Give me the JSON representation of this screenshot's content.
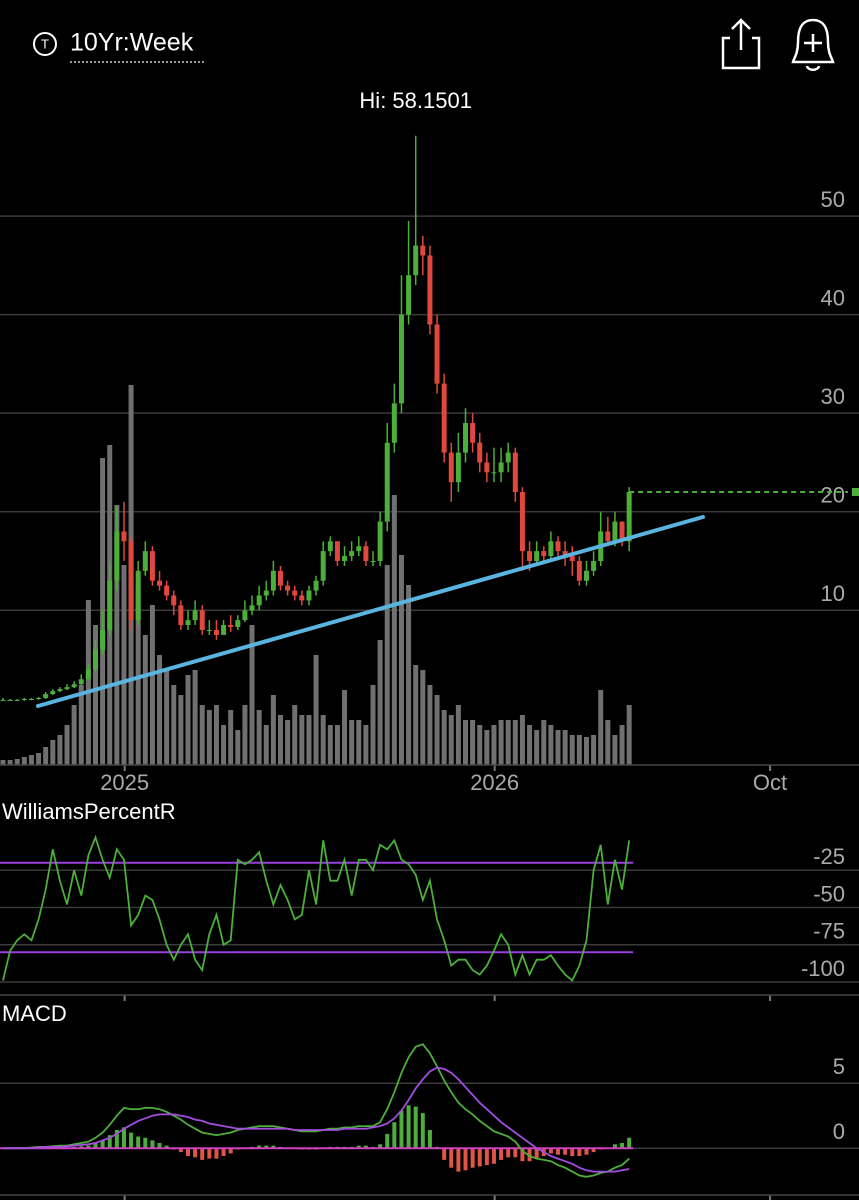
{
  "header": {
    "symbol_icon": "T",
    "title": "10Yr:Week"
  },
  "chart_data": [
    {
      "type": "candlestick",
      "annotation": "Hi: 58.1501",
      "x": [
        0,
        1,
        2,
        3,
        4,
        5,
        6,
        7,
        8,
        9,
        10,
        11,
        12,
        13,
        14,
        15,
        16,
        17,
        18,
        19,
        20,
        21,
        22,
        23,
        24,
        25,
        26,
        27,
        28,
        29,
        30,
        31,
        32,
        33,
        34,
        35,
        36,
        37,
        38,
        39,
        40,
        41,
        42,
        43,
        44,
        45,
        46,
        47,
        48,
        49,
        50,
        51,
        52,
        53,
        54,
        55,
        56,
        57,
        58,
        59,
        60,
        61,
        62,
        63,
        64,
        65,
        66,
        67,
        68,
        69,
        70,
        71,
        72,
        73,
        74,
        75,
        76,
        77,
        78,
        79,
        80,
        81,
        82,
        83,
        84,
        85,
        86,
        87,
        88
      ],
      "open": [
        0.9,
        0.9,
        0.9,
        0.9,
        1.0,
        1.0,
        1.1,
        1.5,
        1.8,
        2.0,
        2.2,
        2.5,
        3.0,
        4.0,
        6.0,
        8.0,
        13,
        18,
        17,
        9,
        14,
        16,
        13,
        12.5,
        11.5,
        10.5,
        8.5,
        9,
        10,
        8,
        8,
        7.5,
        8.5,
        8.3,
        9,
        10,
        10.5,
        11.5,
        12,
        14,
        12.5,
        12,
        11.5,
        11,
        12,
        13,
        16,
        17,
        15,
        15.5,
        16,
        16.5,
        15,
        15,
        19,
        27,
        31,
        40,
        44,
        47,
        46,
        39,
        33,
        26,
        23,
        26,
        29,
        27,
        25,
        24,
        24,
        25,
        26,
        22,
        16,
        15,
        16,
        15.5,
        17,
        16,
        15.5,
        15,
        13,
        14,
        15,
        18,
        17,
        19,
        17
      ],
      "high": [
        1.1,
        1.0,
        1.0,
        1.1,
        1.1,
        1.2,
        1.7,
        2.0,
        2.2,
        2.5,
        2.8,
        3.5,
        4.5,
        7,
        10,
        15,
        20.5,
        21,
        17.5,
        15,
        17,
        16.5,
        14,
        13,
        12,
        11,
        10,
        11,
        10.5,
        9,
        9,
        9,
        9.5,
        9.5,
        11,
        11.5,
        12.5,
        13,
        15,
        14.5,
        13,
        12.5,
        12,
        12.5,
        13.5,
        17,
        17.5,
        17,
        16.5,
        17,
        17.5,
        17,
        16,
        20,
        29,
        33,
        44,
        49.5,
        58.15,
        48,
        47,
        40,
        34,
        27,
        28,
        30.5,
        30,
        28,
        26,
        26.5,
        26.5,
        27,
        26.5,
        22.5,
        17,
        17,
        16.5,
        18,
        17.5,
        17,
        16.5,
        15.5,
        15,
        16,
        20,
        19.5,
        20,
        19,
        22.5
      ],
      "low": [
        0.8,
        0.8,
        0.8,
        0.8,
        0.9,
        0.9,
        1.0,
        1.4,
        1.7,
        1.9,
        2.1,
        2.4,
        2.9,
        3.8,
        5.5,
        7.5,
        12,
        15,
        8,
        8.5,
        13.5,
        12.5,
        12,
        11,
        9.5,
        8,
        8,
        8.5,
        7.5,
        7.5,
        7,
        7.5,
        7.8,
        8,
        8.8,
        9.5,
        10,
        11,
        11.5,
        12,
        11.5,
        11,
        10.5,
        10.5,
        11.5,
        12.5,
        15.5,
        14.5,
        14.5,
        15,
        15.5,
        14.5,
        14.5,
        14.5,
        18,
        26,
        30,
        39,
        43,
        44,
        38,
        32,
        25,
        21,
        22,
        25,
        26,
        24,
        23,
        23,
        23,
        24,
        21,
        14,
        14,
        14.5,
        15,
        15,
        15.5,
        14.5,
        13.5,
        12.5,
        12.5,
        13.5,
        14.5,
        16.5,
        16.5,
        16.5,
        16
      ],
      "close": [
        0.9,
        0.9,
        0.9,
        1.0,
        1.0,
        1.1,
        1.5,
        1.8,
        2.0,
        2.2,
        2.5,
        3.0,
        4.0,
        6.0,
        8.0,
        13,
        18,
        17,
        9,
        14,
        16,
        13,
        12.5,
        11.5,
        10.5,
        8.5,
        9,
        10,
        8,
        8,
        7.5,
        8.5,
        8.3,
        9,
        10,
        10.5,
        11.5,
        12,
        14,
        12.5,
        12,
        11.5,
        11,
        12,
        13,
        16,
        17,
        15,
        15.5,
        16,
        16.5,
        15,
        15,
        19,
        27,
        31,
        40,
        44,
        47,
        46,
        39,
        33,
        26,
        23,
        26,
        29,
        27,
        25,
        24,
        24,
        25,
        26,
        22,
        16,
        15,
        16,
        15.5,
        17,
        16,
        15.5,
        15,
        13,
        14,
        15,
        18,
        17,
        19,
        17,
        22
      ],
      "volume": [
        5,
        5,
        6,
        8,
        10,
        12,
        18,
        25,
        30,
        40,
        60,
        80,
        165,
        140,
        307,
        320,
        260,
        200,
        380,
        175,
        130,
        160,
        110,
        95,
        80,
        70,
        90,
        95,
        60,
        55,
        60,
        40,
        55,
        35,
        60,
        140,
        55,
        40,
        70,
        50,
        45,
        60,
        50,
        50,
        110,
        50,
        40,
        40,
        75,
        45,
        45,
        40,
        80,
        125,
        200,
        270,
        210,
        180,
        100,
        95,
        80,
        70,
        55,
        50,
        60,
        45,
        45,
        40,
        35,
        40,
        45,
        45,
        45,
        50,
        40,
        35,
        45,
        40,
        35,
        35,
        30,
        30,
        28,
        30,
        75,
        45,
        30,
        40,
        60
      ],
      "up_color": "#4caf3a",
      "down_color": "#e0483e",
      "volume_color": "#707070",
      "xlim": [
        -0.42,
        120.3
      ],
      "xticks": [
        {
          "value": 17.1,
          "label": "2025"
        },
        {
          "value": 69.1,
          "label": "2026"
        },
        {
          "value": 107.8,
          "label": "Oct"
        }
      ],
      "ylim": [
        -5.7,
        63.3
      ],
      "yticks": [
        10,
        20,
        30,
        40,
        50
      ],
      "vlim": [
        0,
        680
      ],
      "grid": true
    },
    {
      "type": "line",
      "title": "WilliamsPercentR",
      "color": "#4caf3a",
      "values": [
        -99,
        -79,
        -72,
        -68,
        -72,
        -58,
        -38,
        -11,
        -32,
        -48,
        -25,
        -42,
        -15,
        -3,
        -18,
        -30,
        -11,
        -18,
        -62,
        -55,
        -42,
        -45,
        -58,
        -75,
        -85,
        -75,
        -68,
        -85,
        -92,
        -68,
        -55,
        -75,
        -72,
        -18,
        -21,
        -18,
        -13,
        -32,
        -48,
        -35,
        -45,
        -58,
        -55,
        -25,
        -48,
        -5,
        -32,
        -32,
        -18,
        -42,
        -18,
        -18,
        -25,
        -8,
        -11,
        -5,
        -18,
        -21,
        -28,
        -45,
        -32,
        -58,
        -72,
        -89,
        -85,
        -85,
        -92,
        -95,
        -89,
        -79,
        -68,
        -75,
        -95,
        -82,
        -95,
        -85,
        -85,
        -82,
        -89,
        -95,
        -99,
        -89,
        -72,
        -25,
        -8,
        -48,
        -18,
        -38,
        -5
      ],
      "bands": [
        -20,
        -80
      ],
      "band_color": "#9b3fe0",
      "ylim": [
        -108.7,
        22.1
      ],
      "yticks": [
        -25,
        -50,
        -75,
        -100
      ],
      "grid": true
    },
    {
      "type": "macd",
      "title": "MACD",
      "lines": [
        {
          "color": "#4caf3a",
          "values": [
            0,
            0,
            0,
            0,
            0.05,
            0.1,
            0.1,
            0.15,
            0.2,
            0.2,
            0.3,
            0.4,
            0.5,
            0.8,
            1.2,
            1.8,
            2.5,
            3.1,
            3.0,
            3.0,
            3.1,
            3.1,
            3.0,
            2.8,
            2.5,
            2.2,
            1.8,
            1.5,
            1.2,
            1.1,
            1.0,
            1.1,
            1.2,
            1.4,
            1.5,
            1.6,
            1.7,
            1.7,
            1.7,
            1.6,
            1.5,
            1.4,
            1.3,
            1.3,
            1.3,
            1.4,
            1.5,
            1.5,
            1.6,
            1.6,
            1.7,
            1.7,
            1.7,
            2.0,
            3.0,
            4.3,
            5.8,
            7.0,
            7.8,
            8.0,
            7.3,
            6.3,
            5.2,
            4.3,
            3.5,
            3.0,
            2.6,
            2.1,
            1.7,
            1.3,
            1.1,
            0.9,
            0.5,
            -0.2,
            -0.6,
            -0.8,
            -0.9,
            -1.0,
            -1.3,
            -1.5,
            -1.8,
            -2.1,
            -2.2,
            -2.1,
            -1.9,
            -1.8,
            -1.5,
            -1.3,
            -0.8
          ]
        },
        {
          "color": "#a24ee0",
          "values": [
            0,
            0,
            0,
            0,
            0,
            0.05,
            0.1,
            0.1,
            0.1,
            0.15,
            0.2,
            0.25,
            0.3,
            0.4,
            0.6,
            0.8,
            1.1,
            1.5,
            1.8,
            2.1,
            2.3,
            2.5,
            2.6,
            2.6,
            2.6,
            2.5,
            2.4,
            2.2,
            2.1,
            1.9,
            1.8,
            1.7,
            1.6,
            1.5,
            1.5,
            1.5,
            1.5,
            1.5,
            1.5,
            1.5,
            1.5,
            1.4,
            1.4,
            1.4,
            1.4,
            1.4,
            1.4,
            1.4,
            1.5,
            1.5,
            1.5,
            1.5,
            1.6,
            1.7,
            1.9,
            2.3,
            2.9,
            3.7,
            4.6,
            5.3,
            5.9,
            6.2,
            6.1,
            5.8,
            5.3,
            4.7,
            4.1,
            3.5,
            3.0,
            2.5,
            2.0,
            1.6,
            1.2,
            0.8,
            0.4,
            0.0,
            -0.3,
            -0.6,
            -0.8,
            -1.0,
            -1.2,
            -1.5,
            -1.7,
            -1.8,
            -1.8,
            -1.8,
            -1.8,
            -1.7,
            -1.6
          ]
        }
      ],
      "histogram": {
        "up_color": "#4caf3a",
        "down_color": "#e05545",
        "values": [
          0,
          0,
          0,
          0,
          0.05,
          0.05,
          0,
          0.05,
          0.1,
          0.05,
          0.1,
          0.15,
          0.2,
          0.4,
          0.6,
          1.0,
          1.4,
          1.6,
          1.2,
          0.9,
          0.8,
          0.6,
          0.4,
          0.2,
          -0.1,
          -0.3,
          -0.6,
          -0.7,
          -0.9,
          -0.8,
          -0.8,
          -0.6,
          -0.4,
          -0.1,
          0,
          0.1,
          0.2,
          0.2,
          0.2,
          0.1,
          0,
          0,
          -0.1,
          -0.1,
          -0.1,
          0,
          0.1,
          0.1,
          0.1,
          0.1,
          0.2,
          0.2,
          0.1,
          0.3,
          1.1,
          2.0,
          2.9,
          3.3,
          3.2,
          2.7,
          1.4,
          0.1,
          -0.9,
          -1.5,
          -1.8,
          -1.7,
          -1.5,
          -1.4,
          -1.3,
          -1.2,
          -0.9,
          -0.7,
          -0.7,
          -1.0,
          -1.0,
          -0.8,
          -0.6,
          -0.4,
          -0.5,
          -0.5,
          -0.6,
          -0.6,
          -0.5,
          -0.3,
          -0.1,
          0,
          0.3,
          0.4,
          0.8
        ]
      },
      "zero_color": "#d040c0",
      "ylim": [
        -3.6,
        11.4
      ],
      "yticks": [
        0,
        5
      ],
      "grid": true
    }
  ]
}
